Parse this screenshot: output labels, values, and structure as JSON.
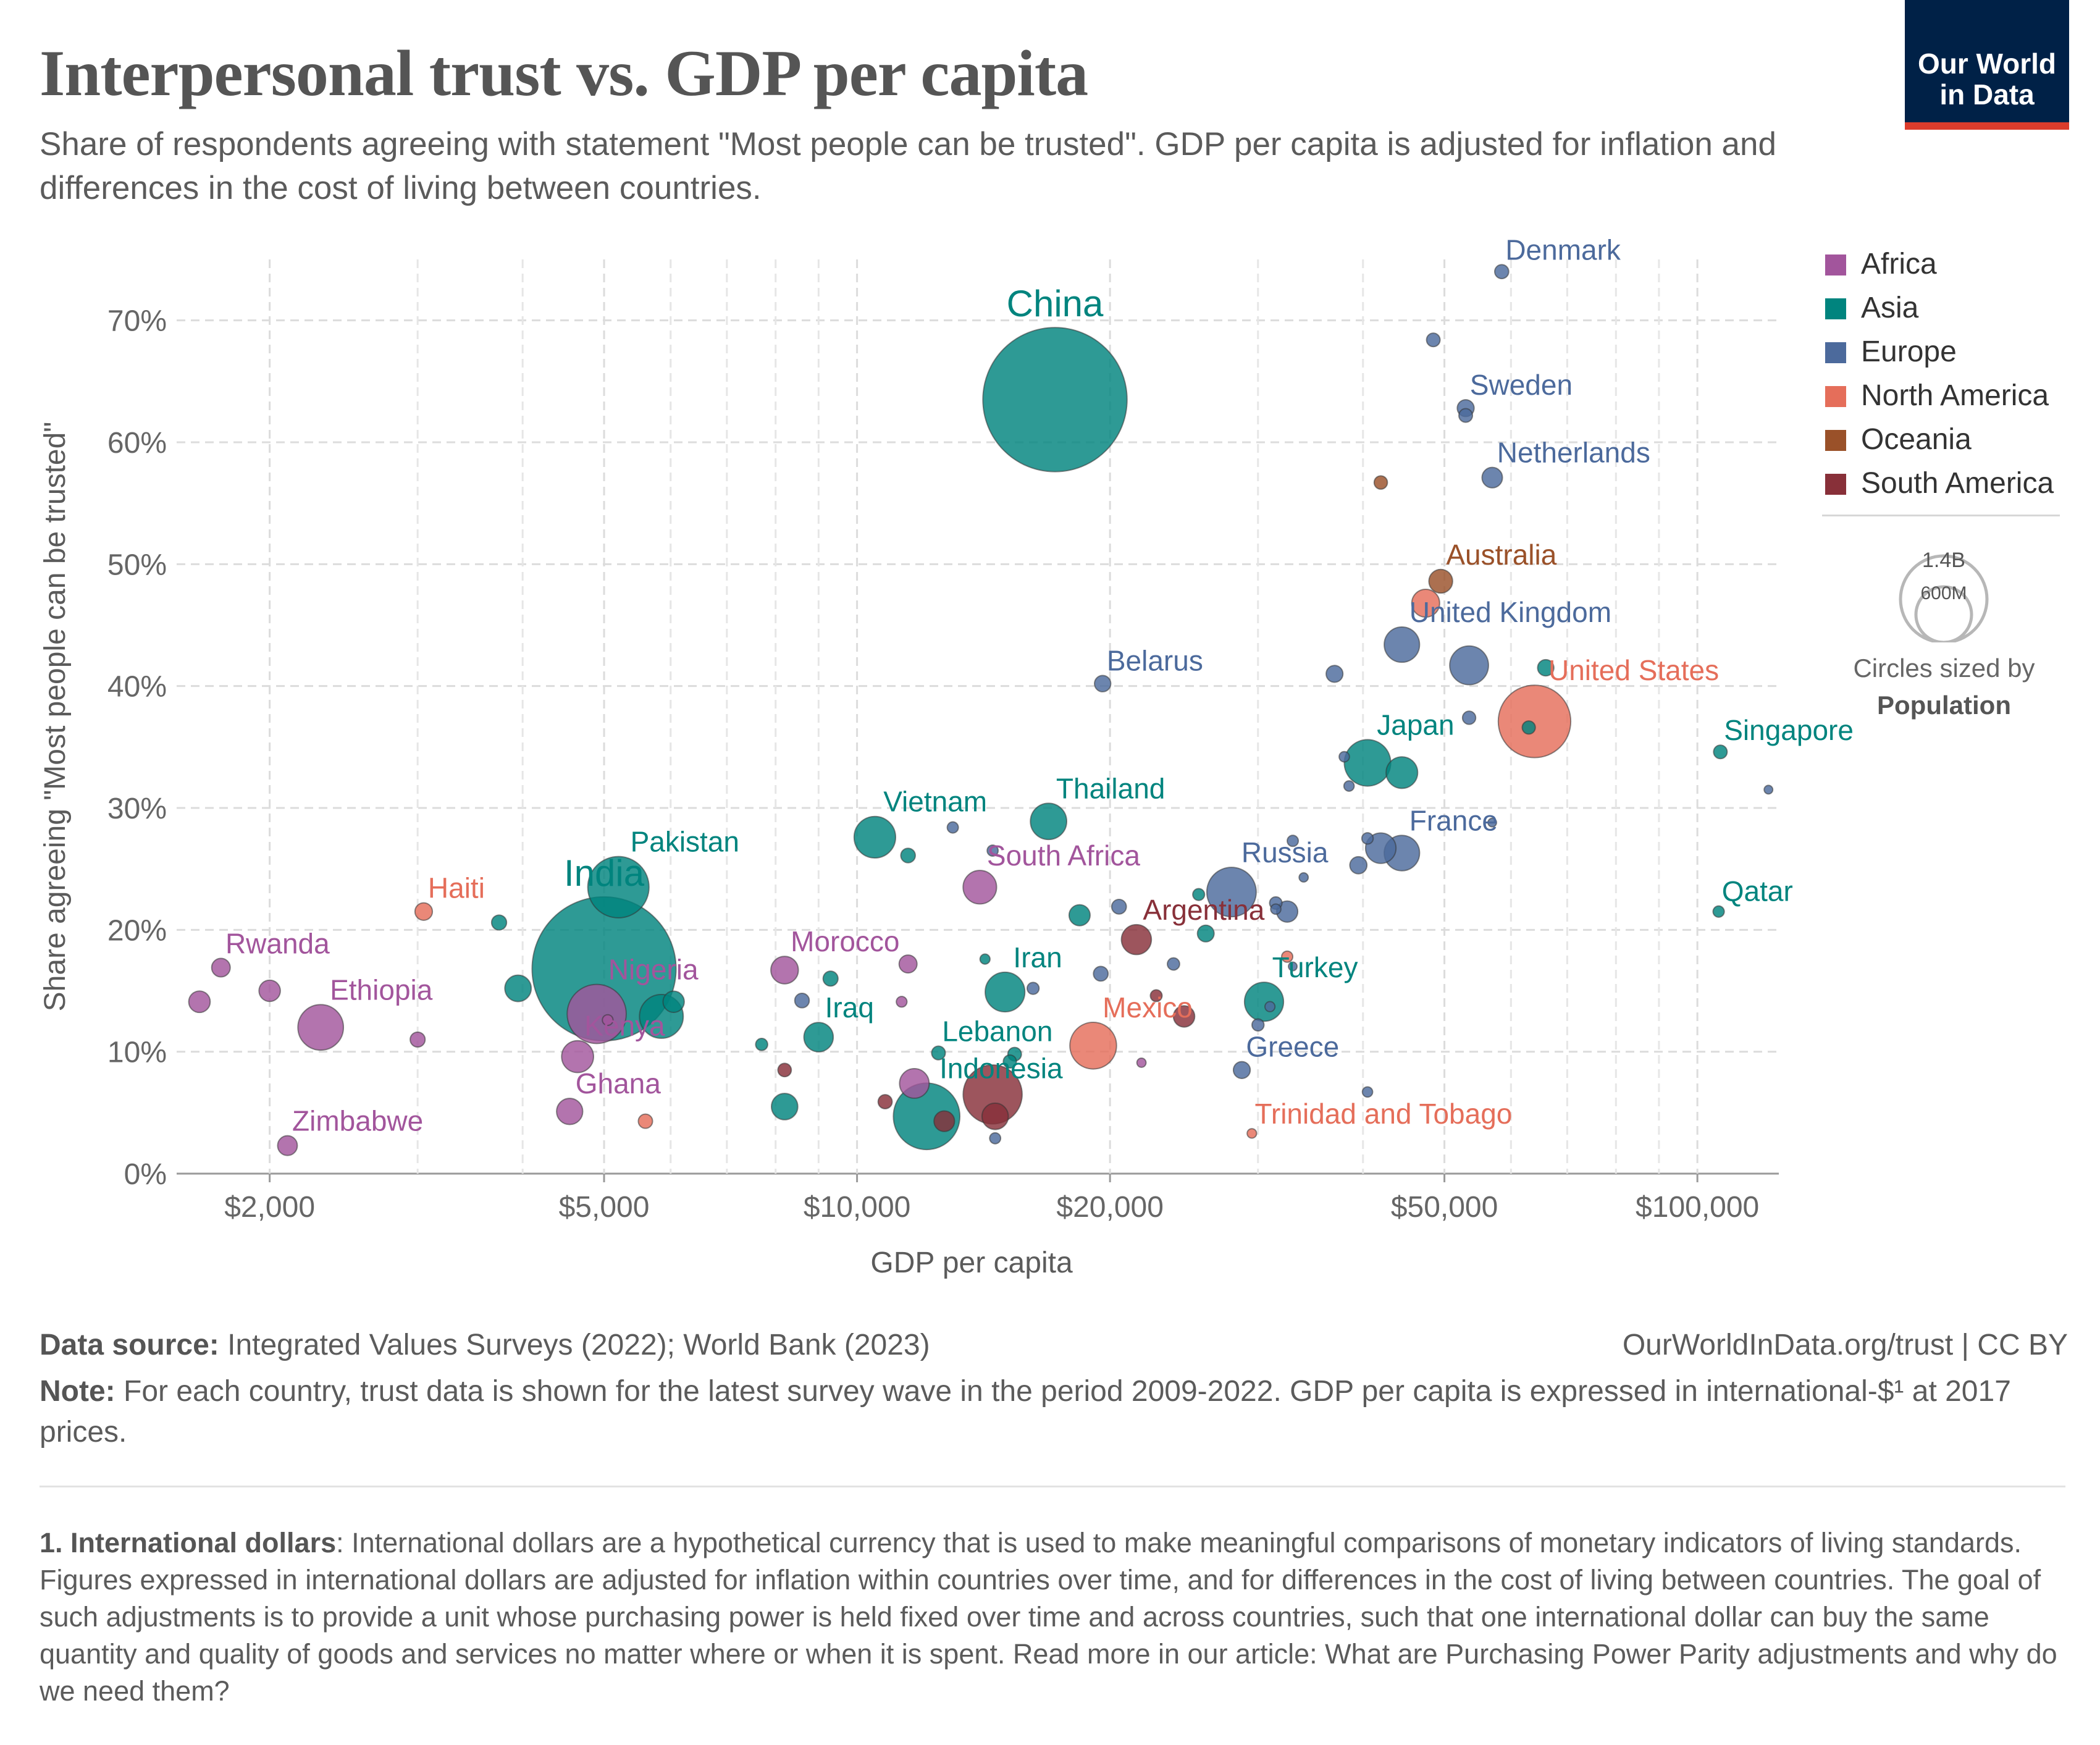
{
  "header": {
    "title": "Interpersonal trust vs. GDP per capita",
    "subtitle": "Share of respondents agreeing with statement \"Most people can be trusted\". GDP per capita is adjusted for inflation and differences in the cost of living between countries.",
    "logo_line1": "Our World",
    "logo_line2": "in Data"
  },
  "legend": {
    "items": [
      {
        "label": "Africa",
        "color": "#a2559c"
      },
      {
        "label": "Asia",
        "color": "#00847e"
      },
      {
        "label": "Europe",
        "color": "#4c6a9c"
      },
      {
        "label": "North America",
        "color": "#e56e5a"
      },
      {
        "label": "Oceania",
        "color": "#9a5129"
      },
      {
        "label": "South America",
        "color": "#883039"
      }
    ],
    "size_big": "1.4B",
    "size_small": "600M",
    "size_note_prefix": "Circles sized by",
    "size_note_metric": "Population"
  },
  "footer": {
    "source_label": "Data source:",
    "source_text": " Integrated Values Surveys (2022); World Bank (2023)",
    "url": "OurWorldInData.org/trust | CC BY",
    "note_label": "Note:",
    "note_text": " For each country, trust data is shown for the latest survey wave in the period 2009-2022. GDP per capita is expressed in international-$¹ at 2017 prices.",
    "footnote_label": "1. International dollars",
    "footnote_text": ": International dollars are a hypothetical currency that is used to make meaningful comparisons of monetary indicators of living standards. Figures expressed in international dollars are adjusted for inflation within countries over time, and for differences in the cost of living between countries. The goal of such adjustments is to provide a unit whose purchasing power is held fixed over time and across countries, such that one international dollar can buy the same quantity and quality of goods and services no matter where or when it is spent. Read more in our article: What are Purchasing Power Parity adjustments and why do we need them?"
  },
  "chart_data": {
    "type": "scatter",
    "xlabel": "GDP per capita",
    "ylabel": "Share agreeing \"Most people can be trusted\"",
    "x_scale": "log",
    "xlim": [
      1550,
      125000
    ],
    "ylim": [
      0,
      75
    ],
    "x_ticks": [
      {
        "value": 2000,
        "label": "$2,000"
      },
      {
        "value": 5000,
        "label": "$5,000"
      },
      {
        "value": 10000,
        "label": "$10,000"
      },
      {
        "value": 20000,
        "label": "$20,000"
      },
      {
        "value": 50000,
        "label": "$50,000"
      },
      {
        "value": 100000,
        "label": "$100,000"
      }
    ],
    "x_minor_gridlines": [
      3000,
      4000,
      6000,
      7000,
      8000,
      9000,
      30000,
      40000,
      60000,
      70000,
      80000,
      90000
    ],
    "y_ticks": [
      {
        "value": 0,
        "label": "0%"
      },
      {
        "value": 10,
        "label": "10%"
      },
      {
        "value": 20,
        "label": "20%"
      },
      {
        "value": 30,
        "label": "30%"
      },
      {
        "value": 40,
        "label": "40%"
      },
      {
        "value": 50,
        "label": "50%"
      },
      {
        "value": 60,
        "label": "60%"
      },
      {
        "value": 70,
        "label": "70%"
      }
    ],
    "grid": true,
    "size_by": "population",
    "points": [
      {
        "label": "China",
        "x": 17200,
        "y": 63.5,
        "region": "Asia",
        "pop_m": 1412
      },
      {
        "label": "India",
        "x": 5000,
        "y": 16.8,
        "region": "Asia",
        "pop_m": 1408
      },
      {
        "label": "Denmark",
        "x": 58500,
        "y": 74.0,
        "region": "Europe",
        "pop_m": 6
      },
      {
        "x": 48500,
        "y": 68.4,
        "region": "Europe",
        "pop_m": 5.4
      },
      {
        "label": "Sweden",
        "x": 53000,
        "y": 62.8,
        "region": "Europe",
        "pop_m": 10.4
      },
      {
        "x": 53000,
        "y": 62.2,
        "region": "Europe",
        "pop_m": 5.5
      },
      {
        "label": "Netherlands",
        "x": 57000,
        "y": 57.1,
        "region": "Europe",
        "pop_m": 17.5
      },
      {
        "x": 42000,
        "y": 56.7,
        "region": "Oceania",
        "pop_m": 5.1
      },
      {
        "label": "Australia",
        "x": 49500,
        "y": 48.6,
        "region": "Oceania",
        "pop_m": 25.7
      },
      {
        "x": 47500,
        "y": 46.8,
        "region": "North America",
        "pop_m": 38.2
      },
      {
        "label": "United Kingdom",
        "x": 44500,
        "y": 43.4,
        "region": "Europe",
        "pop_m": 67.3
      },
      {
        "x": 53500,
        "y": 41.7,
        "region": "Europe",
        "pop_m": 83.2
      },
      {
        "label": "United States",
        "x": 64000,
        "y": 37.1,
        "region": "North America",
        "pop_m": 332
      },
      {
        "x": 66000,
        "y": 41.5,
        "region": "Asia",
        "pop_m": 9.4
      },
      {
        "label": "Singapore",
        "x": 106500,
        "y": 34.6,
        "region": "Asia",
        "pop_m": 5.5
      },
      {
        "x": 121500,
        "y": 31.5,
        "region": "Europe",
        "pop_m": 0.6
      },
      {
        "label": "Belarus",
        "x": 19600,
        "y": 40.2,
        "region": "Europe",
        "pop_m": 9.4
      },
      {
        "x": 37000,
        "y": 41.0,
        "region": "Europe",
        "pop_m": 10.3
      },
      {
        "x": 53500,
        "y": 37.4,
        "region": "Europe",
        "pop_m": 5
      },
      {
        "x": 63000,
        "y": 36.6,
        "region": "Asia",
        "pop_m": 4.9
      },
      {
        "label": "Japan",
        "x": 40500,
        "y": 33.7,
        "region": "Asia",
        "pop_m": 125.7
      },
      {
        "x": 44500,
        "y": 32.9,
        "region": "Asia",
        "pop_m": 51.7
      },
      {
        "x": 38000,
        "y": 34.2,
        "region": "Europe",
        "pop_m": 2.1
      },
      {
        "x": 38500,
        "y": 31.8,
        "region": "Europe",
        "pop_m": 2.1
      },
      {
        "label": "France",
        "x": 44500,
        "y": 26.3,
        "region": "Europe",
        "pop_m": 67.7
      },
      {
        "x": 42000,
        "y": 26.7,
        "region": "Europe",
        "pop_m": 47.3
      },
      {
        "x": 40500,
        "y": 27.5,
        "region": "Europe",
        "pop_m": 3
      },
      {
        "x": 33000,
        "y": 27.3,
        "region": "Europe",
        "pop_m": 2.8
      },
      {
        "x": 39500,
        "y": 25.3,
        "region": "Europe",
        "pop_m": 10.8
      },
      {
        "x": 57000,
        "y": 28.8,
        "region": "Europe",
        "pop_m": 1
      },
      {
        "label": "Qatar",
        "x": 106000,
        "y": 21.5,
        "region": "Asia",
        "pop_m": 2.9
      },
      {
        "label": "Russia",
        "x": 27900,
        "y": 23.1,
        "region": "Europe",
        "pop_m": 144
      },
      {
        "x": 34000,
        "y": 24.3,
        "region": "Europe",
        "pop_m": 1.3
      },
      {
        "x": 31500,
        "y": 22.2,
        "region": "Europe",
        "pop_m": 4.1
      },
      {
        "x": 31500,
        "y": 21.7,
        "region": "Europe",
        "pop_m": 2.1
      },
      {
        "x": 32500,
        "y": 21.5,
        "region": "Europe",
        "pop_m": 19.1
      },
      {
        "x": 25500,
        "y": 22.9,
        "region": "Asia",
        "pop_m": 3.5
      },
      {
        "x": 26000,
        "y": 19.7,
        "region": "Asia",
        "pop_m": 10.1
      },
      {
        "x": 20500,
        "y": 21.9,
        "region": "Europe",
        "pop_m": 6.9
      },
      {
        "x": 18400,
        "y": 21.2,
        "region": "Asia",
        "pop_m": 19
      },
      {
        "label": "Argentina",
        "x": 21500,
        "y": 19.2,
        "region": "South America",
        "pop_m": 45.8
      },
      {
        "x": 23800,
        "y": 17.2,
        "region": "Europe",
        "pop_m": 3.9
      },
      {
        "label": "Turkey",
        "x": 30500,
        "y": 14.1,
        "region": "Asia",
        "pop_m": 84.8
      },
      {
        "x": 31000,
        "y": 13.7,
        "region": "Europe",
        "pop_m": 1.9
      },
      {
        "x": 32500,
        "y": 17.8,
        "region": "North America",
        "pop_m": 2.8
      },
      {
        "x": 33000,
        "y": 17.0,
        "region": "Europe",
        "pop_m": 0.5
      },
      {
        "x": 22700,
        "y": 14.6,
        "region": "South America",
        "pop_m": 3.4
      },
      {
        "x": 24500,
        "y": 12.9,
        "region": "South America",
        "pop_m": 19.5
      },
      {
        "label": "Greece",
        "x": 28700,
        "y": 8.5,
        "region": "Europe",
        "pop_m": 10.4
      },
      {
        "x": 30000,
        "y": 12.2,
        "region": "Europe",
        "pop_m": 3.7
      },
      {
        "x": 40500,
        "y": 6.7,
        "region": "Europe",
        "pop_m": 2.1
      },
      {
        "label": "Trinidad and Tobago",
        "x": 29500,
        "y": 3.3,
        "region": "North America",
        "pop_m": 1.5
      },
      {
        "label": "Mexico",
        "x": 19100,
        "y": 10.5,
        "region": "North America",
        "pop_m": 126.7
      },
      {
        "x": 21800,
        "y": 9.1,
        "region": "Africa",
        "pop_m": 1.3
      },
      {
        "label": "Thailand",
        "x": 16900,
        "y": 28.9,
        "region": "Asia",
        "pop_m": 71.6
      },
      {
        "label": "Vietnam",
        "x": 10500,
        "y": 27.6,
        "region": "Asia",
        "pop_m": 97.5
      },
      {
        "x": 11500,
        "y": 26.1,
        "region": "Asia",
        "pop_m": 6.7
      },
      {
        "x": 13000,
        "y": 28.4,
        "region": "Europe",
        "pop_m": 2.8
      },
      {
        "x": 14500,
        "y": 26.5,
        "region": "Europe",
        "pop_m": 2.7
      },
      {
        "label": "South Africa",
        "x": 14000,
        "y": 23.5,
        "region": "Africa",
        "pop_m": 59.4
      },
      {
        "x": 19500,
        "y": 16.4,
        "region": "Europe",
        "pop_m": 6.9
      },
      {
        "x": 11500,
        "y": 17.2,
        "region": "Africa",
        "pop_m": 12.3
      },
      {
        "x": 14200,
        "y": 17.6,
        "region": "Asia",
        "pop_m": 1.9
      },
      {
        "label": "Iran",
        "x": 15000,
        "y": 14.9,
        "region": "Asia",
        "pop_m": 87.9
      },
      {
        "x": 16200,
        "y": 15.2,
        "region": "Europe",
        "pop_m": 3.6
      },
      {
        "label": "Lebanon",
        "x": 12500,
        "y": 9.9,
        "region": "Asia",
        "pop_m": 5.6
      },
      {
        "x": 15400,
        "y": 9.8,
        "region": "Asia",
        "pop_m": 5.5
      },
      {
        "x": 15200,
        "y": 9.2,
        "region": "Asia",
        "pop_m": 4.9
      },
      {
        "label": "Indonesia",
        "x": 12100,
        "y": 4.7,
        "region": "Asia",
        "pop_m": 276
      },
      {
        "x": 11700,
        "y": 7.4,
        "region": "Africa",
        "pop_m": 44.2
      },
      {
        "x": 14500,
        "y": 6.5,
        "region": "South America",
        "pop_m": 213
      },
      {
        "x": 14600,
        "y": 4.7,
        "region": "South America",
        "pop_m": 33.4
      },
      {
        "x": 12700,
        "y": 4.3,
        "region": "South America",
        "pop_m": 17.8
      },
      {
        "x": 10800,
        "y": 5.9,
        "region": "South America",
        "pop_m": 6.1
      },
      {
        "x": 14600,
        "y": 2.9,
        "region": "Europe",
        "pop_m": 2.7
      },
      {
        "label": "Morocco",
        "x": 8200,
        "y": 16.7,
        "region": "Africa",
        "pop_m": 37
      },
      {
        "x": 9300,
        "y": 16.0,
        "region": "Asia",
        "pop_m": 7.3
      },
      {
        "x": 11300,
        "y": 14.1,
        "region": "Africa",
        "pop_m": 2.4
      },
      {
        "x": 8600,
        "y": 14.2,
        "region": "Europe",
        "pop_m": 6.7
      },
      {
        "label": "Iraq",
        "x": 9000,
        "y": 11.2,
        "region": "Asia",
        "pop_m": 43.5
      },
      {
        "x": 7700,
        "y": 10.6,
        "region": "Asia",
        "pop_m": 3.7
      },
      {
        "x": 8200,
        "y": 8.5,
        "region": "South America",
        "pop_m": 5.3
      },
      {
        "x": 8200,
        "y": 5.5,
        "region": "Asia",
        "pop_m": 33.4
      },
      {
        "label": "Pakistan",
        "x": 5200,
        "y": 23.5,
        "region": "Asia",
        "pop_m": 231
      },
      {
        "x": 3750,
        "y": 20.6,
        "region": "Asia",
        "pop_m": 7.4
      },
      {
        "x": 3950,
        "y": 15.2,
        "region": "Asia",
        "pop_m": 33.6
      },
      {
        "x": 5850,
        "y": 12.9,
        "region": "Asia",
        "pop_m": 110
      },
      {
        "x": 6050,
        "y": 14.1,
        "region": "Asia",
        "pop_m": 19.4
      },
      {
        "label": "Nigeria",
        "x": 4900,
        "y": 13.1,
        "region": "Africa",
        "pop_m": 213.4
      },
      {
        "x": 5050,
        "y": 12.6,
        "region": "Africa",
        "pop_m": 2.4
      },
      {
        "label": "Kenya",
        "x": 4650,
        "y": 9.6,
        "region": "Africa",
        "pop_m": 53
      },
      {
        "label": "Ghana",
        "x": 4550,
        "y": 5.1,
        "region": "Africa",
        "pop_m": 32.8
      },
      {
        "x": 5600,
        "y": 4.3,
        "region": "North America",
        "pop_m": 6.3
      },
      {
        "label": "Haiti",
        "x": 3050,
        "y": 21.5,
        "region": "North America",
        "pop_m": 11.4
      },
      {
        "x": 3000,
        "y": 11.0,
        "region": "Africa",
        "pop_m": 7.3
      },
      {
        "label": "Ethiopia",
        "x": 2300,
        "y": 12.0,
        "region": "Africa",
        "pop_m": 120
      },
      {
        "label": "Rwanda",
        "x": 1750,
        "y": 16.9,
        "region": "Africa",
        "pop_m": 13.5
      },
      {
        "x": 1650,
        "y": 14.1,
        "region": "Africa",
        "pop_m": 19.9
      },
      {
        "x": 2000,
        "y": 15.0,
        "region": "Africa",
        "pop_m": 19.6
      },
      {
        "label": "Zimbabwe",
        "x": 2100,
        "y": 2.3,
        "region": "Africa",
        "pop_m": 15.9
      }
    ]
  }
}
